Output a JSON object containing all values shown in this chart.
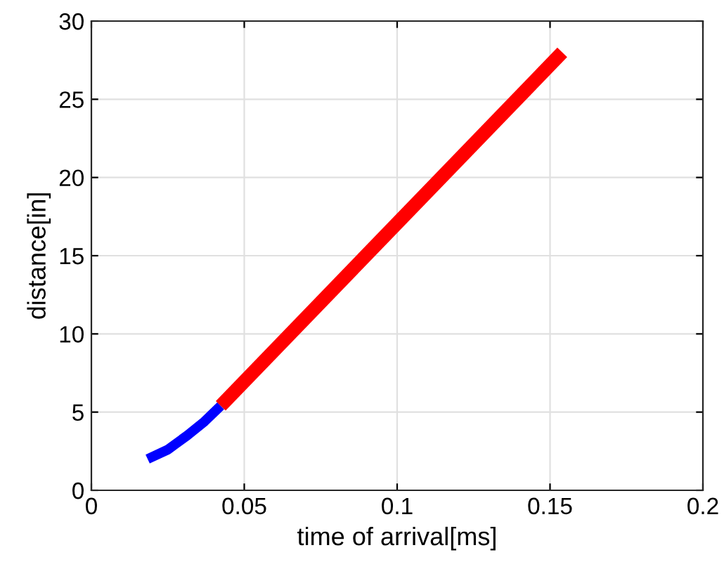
{
  "chart_data": {
    "type": "line",
    "xlabel": "time of arrival[ms]",
    "ylabel": "distance[in]",
    "series": [
      {
        "color": "#0000ff",
        "x": [
          0.0184,
          0.025,
          0.0313,
          0.037,
          0.0423
        ],
        "values": [
          2.0,
          2.6,
          3.5,
          4.4,
          5.4
        ]
      },
      {
        "color": "#ff0000",
        "x": [
          0.0423,
          0.154
        ],
        "values": [
          5.4,
          28.0
        ]
      }
    ],
    "xlim": [
      0,
      0.2
    ],
    "xticks": [
      0,
      0.05,
      0.1,
      0.15,
      0.2
    ],
    "ylim": [
      0,
      30
    ],
    "yticks": [
      0,
      5,
      10,
      15,
      20,
      25,
      30
    ],
    "grid": true,
    "line_style": "solid",
    "marker": "none"
  }
}
